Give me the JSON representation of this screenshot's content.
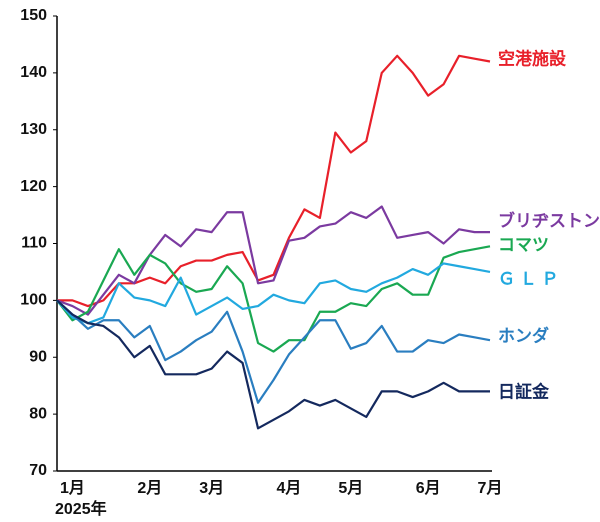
{
  "chart_data": {
    "type": "line",
    "categories": [
      null,
      "1月",
      null,
      null,
      null,
      null,
      "2月",
      null,
      null,
      null,
      "3月",
      null,
      null,
      null,
      null,
      "4月",
      null,
      null,
      null,
      "5月",
      null,
      null,
      null,
      null,
      "6月",
      null,
      null,
      null,
      "7月"
    ],
    "year_label": "2025年",
    "ylim": [
      70,
      150
    ],
    "yticks": [
      70,
      80,
      90,
      100,
      110,
      120,
      130,
      140,
      150
    ],
    "grid": false,
    "series": [
      {
        "name": "空港施設",
        "color": "#e8202a",
        "values": [
          100,
          100,
          99,
          100,
          103,
          103,
          104,
          103,
          106,
          107,
          107,
          108,
          108.5,
          103.5,
          104.5,
          111,
          116,
          114.5,
          129.5,
          126,
          128,
          140,
          143,
          140,
          136,
          138,
          143,
          142.5,
          142
        ]
      },
      {
        "name": "ブリヂストン",
        "color": "#7b3aa0",
        "values": [
          100,
          99,
          97.5,
          101,
          104.5,
          103,
          108,
          111.5,
          109.5,
          112.5,
          112,
          115.5,
          115.5,
          103,
          103.5,
          110.5,
          111,
          113,
          113.5,
          115.5,
          114.5,
          116.5,
          111,
          111.5,
          112,
          110,
          112.5,
          112,
          112
        ]
      },
      {
        "name": "コマツ",
        "color": "#1aa852",
        "values": [
          100,
          96.5,
          98,
          103.5,
          109,
          104.5,
          108,
          106.5,
          103,
          101.5,
          102,
          106,
          103,
          92.5,
          91,
          93,
          93,
          98,
          98,
          99.5,
          99,
          102,
          103,
          101,
          101,
          107.5,
          108.5,
          109,
          109.5
        ]
      },
      {
        "name": "Ｇ Ｌ Ｐ",
        "color": "#22a9df",
        "values": [
          100,
          97,
          96,
          97,
          103,
          100.5,
          100,
          99,
          104,
          97.5,
          99,
          100.5,
          98.5,
          99,
          101,
          100,
          99.5,
          103,
          103.5,
          102,
          101.5,
          103,
          104,
          105.5,
          104.5,
          106.5,
          106,
          105.5,
          105
        ]
      },
      {
        "name": "ホンダ",
        "color": "#2a7ec0",
        "values": [
          100,
          97.5,
          95,
          96.5,
          96.5,
          93.5,
          95.5,
          89.5,
          91,
          93,
          94.5,
          98,
          91,
          82,
          86,
          90.5,
          93.5,
          96.5,
          96.5,
          91.5,
          92.5,
          95.5,
          91,
          91,
          93,
          92.5,
          94,
          93.5,
          93
        ]
      },
      {
        "name": "日証金",
        "color": "#14295e",
        "values": [
          100,
          97.5,
          96,
          95.5,
          93.5,
          90,
          92,
          87,
          87,
          87,
          88,
          91,
          89,
          77.5,
          79,
          80.5,
          82.5,
          81.5,
          82.5,
          81,
          79.5,
          84,
          84,
          83,
          84,
          85.5,
          84,
          84,
          84
        ]
      }
    ]
  }
}
